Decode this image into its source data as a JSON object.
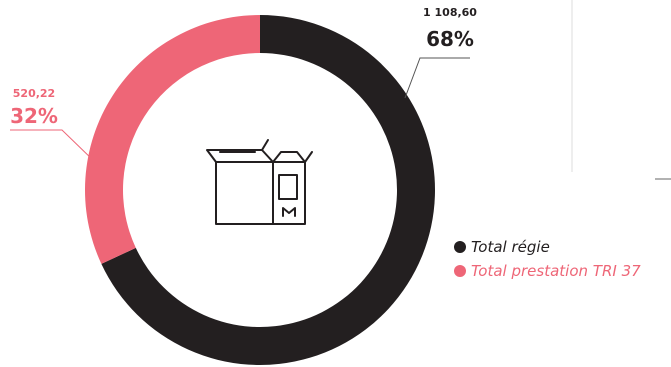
{
  "chart_data": {
    "type": "pie",
    "style": "donut",
    "slices": [
      {
        "label": "Total régie",
        "value": 1108.6,
        "value_text": "1 108,60",
        "percent_text": "68%",
        "color": "#231f20"
      },
      {
        "label": "Total prestation TRI 37",
        "value": 520.22,
        "value_text": "520,22",
        "percent_text": "32%",
        "color": "#ee6677"
      }
    ],
    "legend_position": "right",
    "center_icon": "box-package-icon"
  },
  "colors": {
    "dark": "#231f20",
    "pink": "#ee6677",
    "leader_line": "#555555",
    "divider": "#dddddd"
  }
}
